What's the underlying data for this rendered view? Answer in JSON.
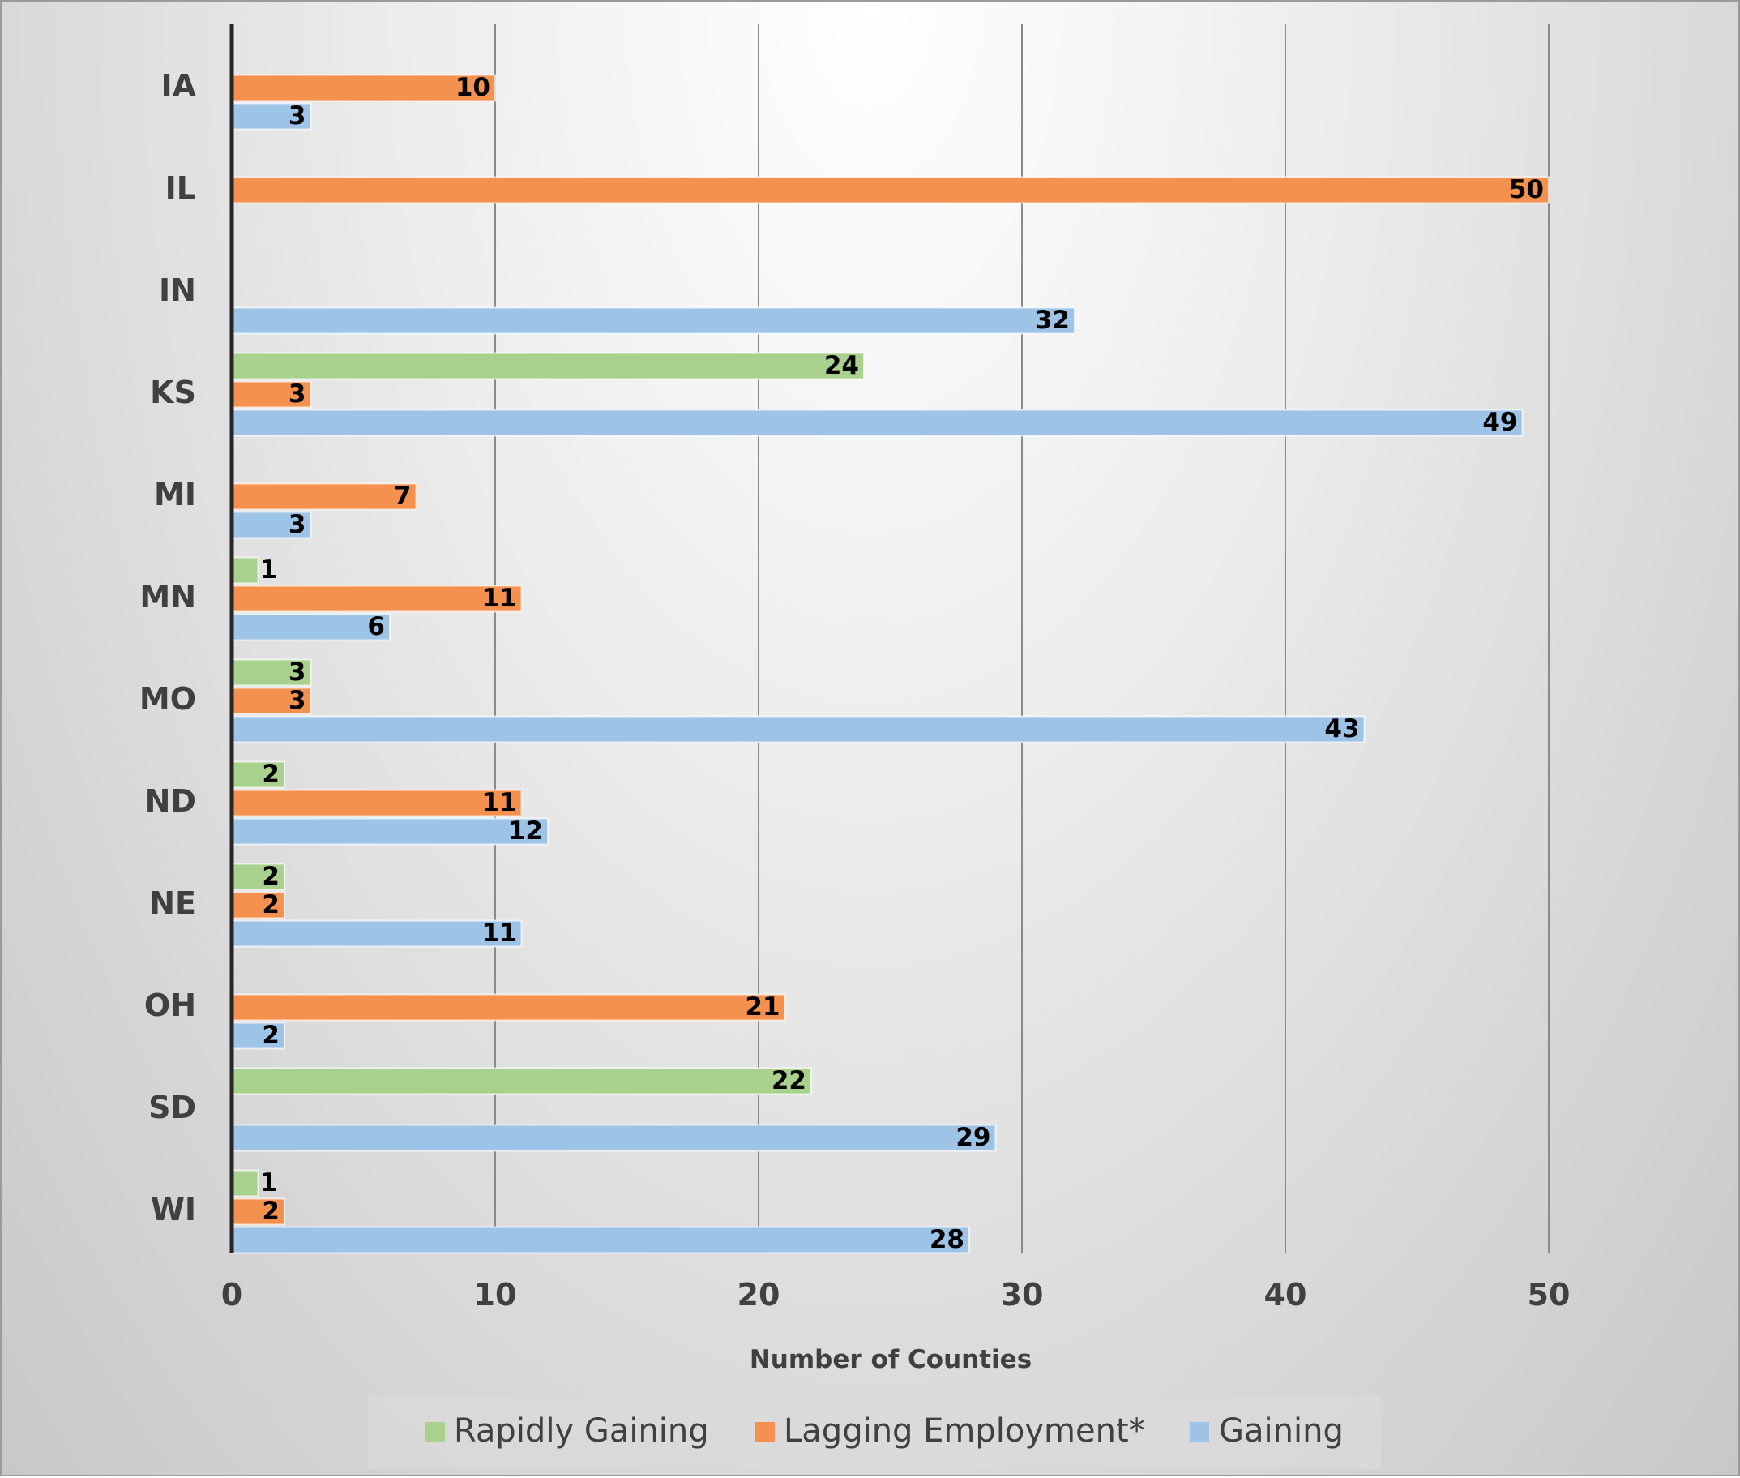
{
  "chart_data": {
    "type": "bar",
    "orientation": "horizontal",
    "categories": [
      "IA",
      "IL",
      "IN",
      "KS",
      "MI",
      "MN",
      "MO",
      "ND",
      "NE",
      "OH",
      "SD",
      "WI"
    ],
    "series": [
      {
        "name": "Rapidly Gaining",
        "color": "#a9d18e",
        "values": [
          null,
          null,
          null,
          24,
          null,
          1,
          3,
          2,
          2,
          null,
          22,
          1
        ]
      },
      {
        "name": "Lagging Employment*",
        "color": "#f4914e",
        "values": [
          10,
          50,
          null,
          3,
          7,
          11,
          3,
          11,
          2,
          21,
          null,
          2
        ]
      },
      {
        "name": "Gaining",
        "color": "#9dc3e6",
        "values": [
          3,
          null,
          32,
          49,
          3,
          6,
          43,
          12,
          11,
          2,
          29,
          28
        ]
      }
    ],
    "xlabel": "Number of Counties",
    "ylabel": "",
    "xlim": [
      0,
      50
    ],
    "xticks": [
      0,
      10,
      20,
      30,
      40,
      50
    ],
    "grid": "vertical",
    "legend": "bottom",
    "data_labels": true
  }
}
